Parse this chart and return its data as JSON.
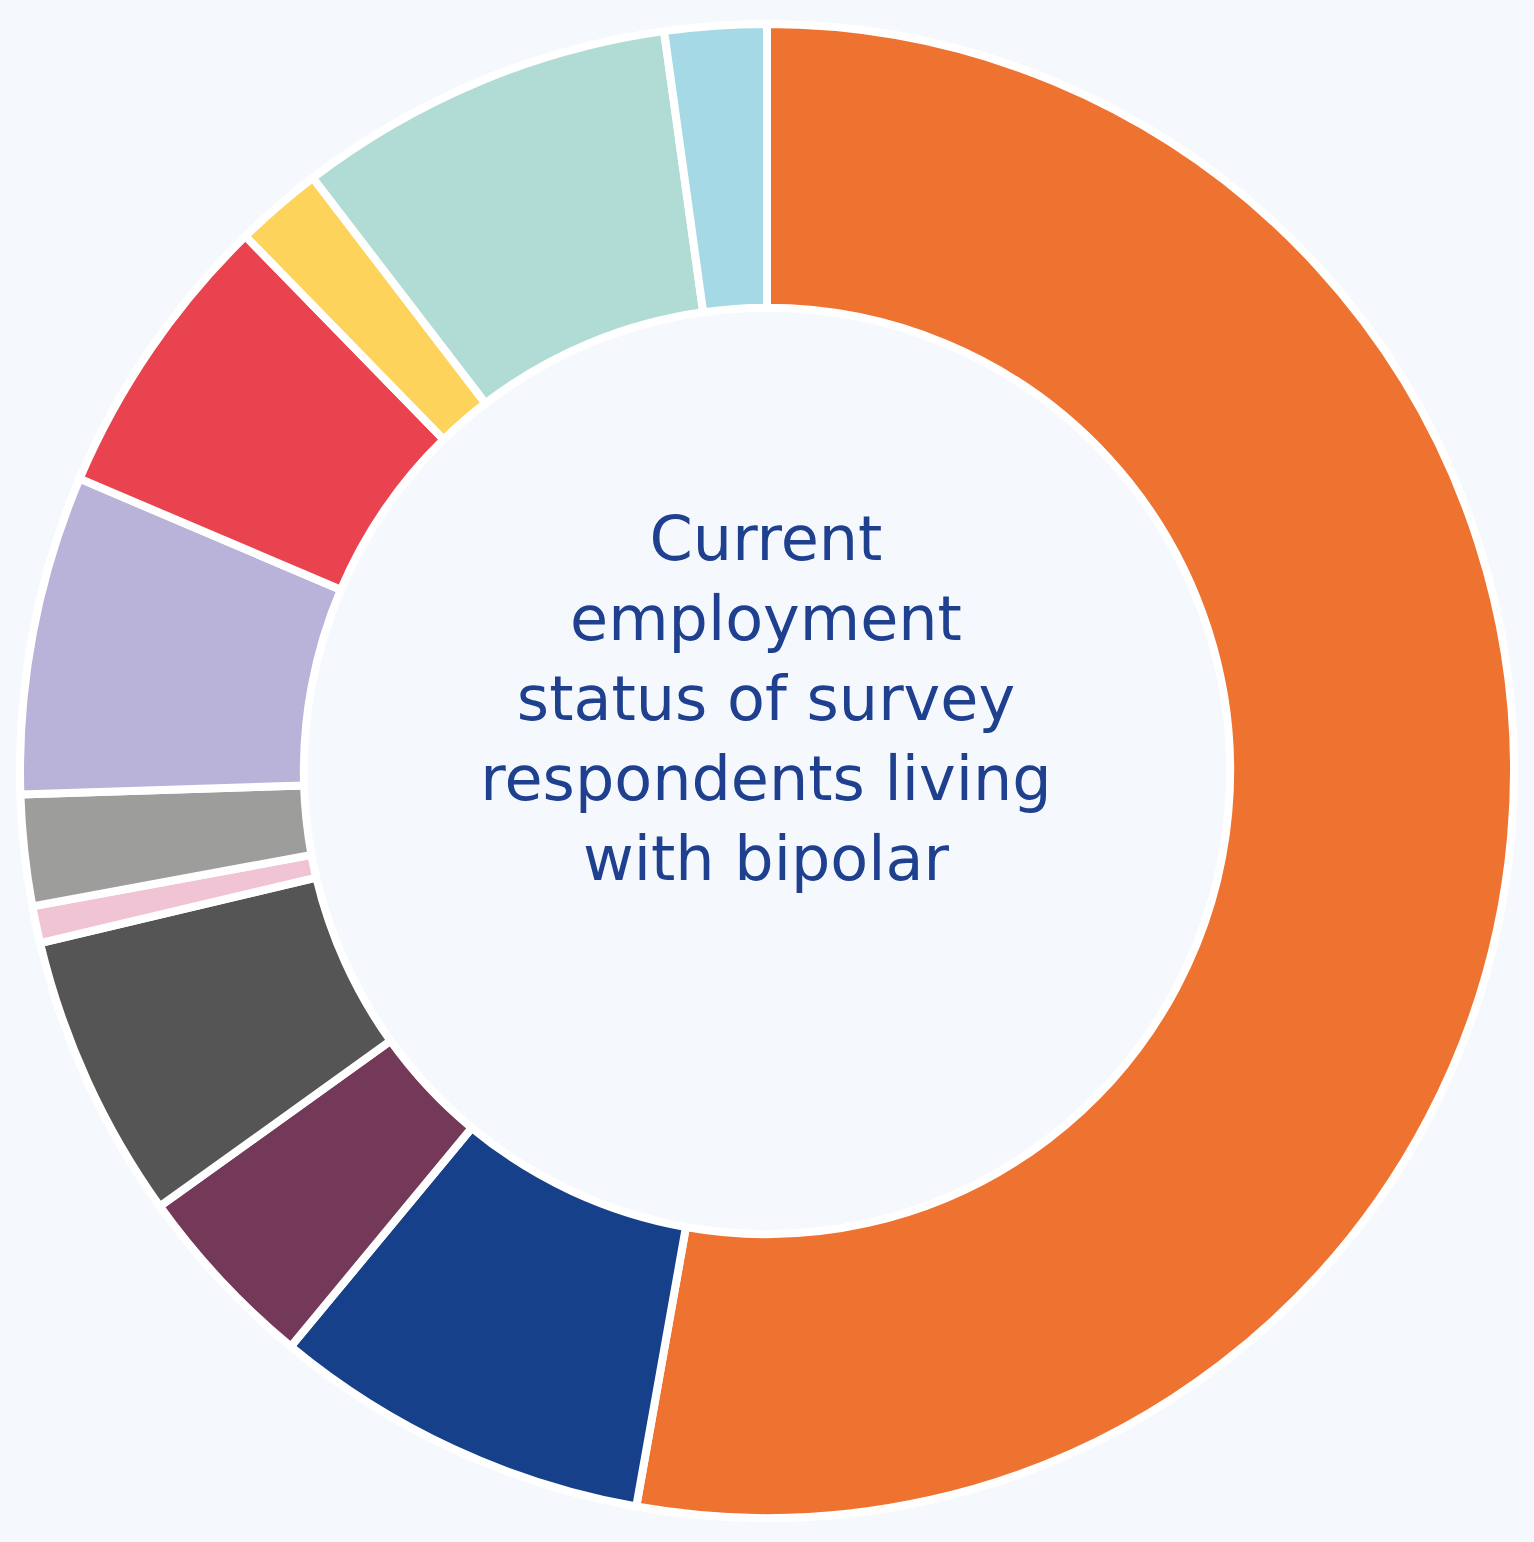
{
  "chart_data": {
    "type": "donut",
    "title": "Current employment status of survey respondents living with bipolar",
    "categories": [
      null,
      null,
      null,
      null,
      null,
      null,
      null,
      null,
      null,
      null,
      null
    ],
    "values": [
      52.8,
      8.2,
      4.1,
      6.2,
      0.8,
      2.4,
      6.9,
      6.3,
      1.9,
      8.2,
      2.2
    ],
    "colors": [
      "#ee7230",
      "#17408a",
      "#743858",
      "#555555",
      "#f0c4d4",
      "#9d9d9b",
      "#b9b3da",
      "#e8434f",
      "#fdd35c",
      "#b1dcd6",
      "#a6d9e6"
    ],
    "legend": false
  }
}
